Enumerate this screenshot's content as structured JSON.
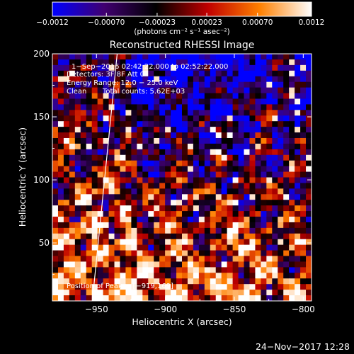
{
  "chart_data": {
    "type": "heatmap",
    "title": "Reconstructed RHESSI Image",
    "xlabel": "Heliocentric X (arcsec)",
    "ylabel": "Heliocentric Y (arcsec)",
    "xlim": [
      -982,
      -794
    ],
    "ylim": [
      4,
      200
    ],
    "x_ticks": [
      -950,
      -900,
      -850,
      -800
    ],
    "x_tick_labels": [
      "−950",
      "−900",
      "−850",
      "−800"
    ],
    "y_ticks": [
      50,
      100,
      150,
      200
    ],
    "y_tick_labels": [
      "50",
      "100",
      "150",
      "200"
    ],
    "colorbar": {
      "colormap": "red-temperature (blue to white)",
      "colors": [
        "#0000ff",
        "#400070",
        "#000000",
        "#c00000",
        "#ff8000",
        "#ffffff"
      ],
      "range": [
        -0.0012,
        0.0012
      ],
      "ticks": [
        -0.0012,
        -0.0007,
        -0.00023,
        0.00023,
        0.0007,
        0.0012
      ],
      "tick_labels": [
        "−0.0012",
        "−0.00070",
        "−0.00023",
        "0.00023",
        "0.00070",
        "0.0012"
      ],
      "label": "(photons cm⁻² s⁻¹ asec⁻²)"
    },
    "annotations": {
      "time_range": "1−Sep−2016 02:42:22.000 to 02:52:22.000",
      "detectors": "Detectors: 3F 8F  Att 0",
      "energy_range": "Energy Range: 12.0 − 25.0 keV",
      "method": "Clean",
      "total_counts": "Total counts: 5.62E+03",
      "peak_position": "Position of Peak = [−919,169]"
    },
    "limb_line": {
      "x": [
        -953,
        -935
      ],
      "y": [
        4,
        200
      ]
    },
    "grid": false
  },
  "footer": {
    "timestamp": "24−Nov−2017 12:28"
  }
}
